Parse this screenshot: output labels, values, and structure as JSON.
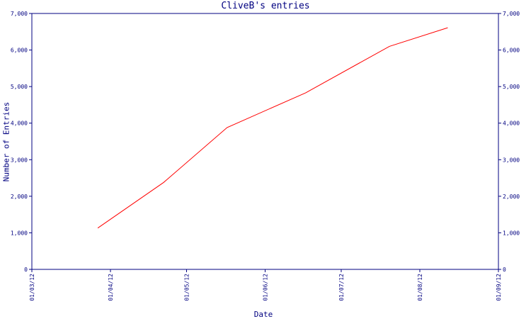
{
  "chart_data": {
    "type": "line",
    "title": "CliveB's entries",
    "xlabel": "Date",
    "ylabel": "Number of Entries",
    "x_ticks": [
      "01/03/12",
      "01/04/12",
      "01/05/12",
      "01/06/12",
      "01/07/12",
      "01/08/12",
      "01/09/12"
    ],
    "y_ticks": [
      "0",
      "1,000",
      "2,000",
      "3,000",
      "4,000",
      "5,000",
      "6,000",
      "7,000"
    ],
    "xlim": [
      "2012-03-01",
      "2012-09-01"
    ],
    "ylim": [
      0,
      7000
    ],
    "grid": false,
    "series": [
      {
        "color": "#ff0000",
        "x": [
          "2012-03-27",
          "2012-04-22",
          "2012-05-17",
          "2012-06-17",
          "2012-07-20",
          "2012-08-12"
        ],
        "y": [
          1130,
          2380,
          3880,
          4830,
          6100,
          6610
        ]
      }
    ]
  }
}
